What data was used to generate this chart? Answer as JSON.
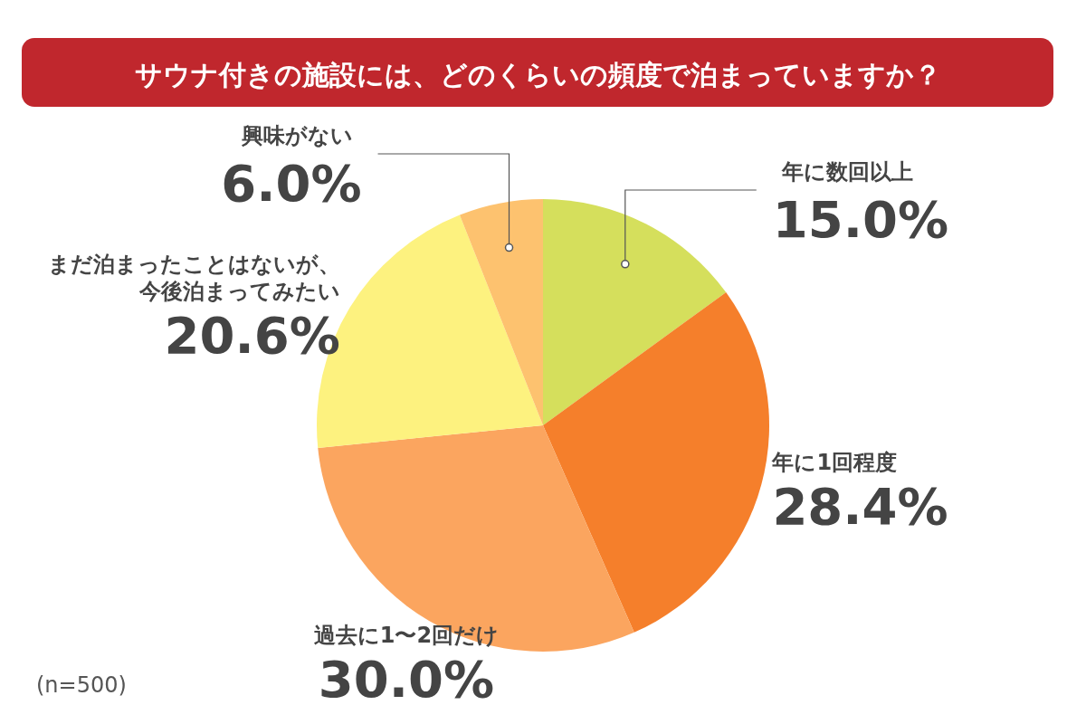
{
  "chart_data": {
    "type": "pie",
    "title": "サウナ付きの施設には、どのくらいの頻度で泊まっていますか？",
    "categories": [
      "年に数回以上",
      "年に1回程度",
      "過去に1〜2回だけ",
      "まだ泊まったことはないが、今後泊まってみたい",
      "興味がない"
    ],
    "values": [
      15.0,
      28.4,
      30.0,
      20.6,
      6.0
    ],
    "value_labels": [
      "15.0%",
      "28.4%",
      "30.0%",
      "20.6%",
      "6.0%"
    ],
    "colors": [
      "#d5df5c",
      "#f57f2b",
      "#fba55f",
      "#fdf27f",
      "#fdc26f"
    ],
    "annotations": [
      "(n=500)"
    ]
  }
}
